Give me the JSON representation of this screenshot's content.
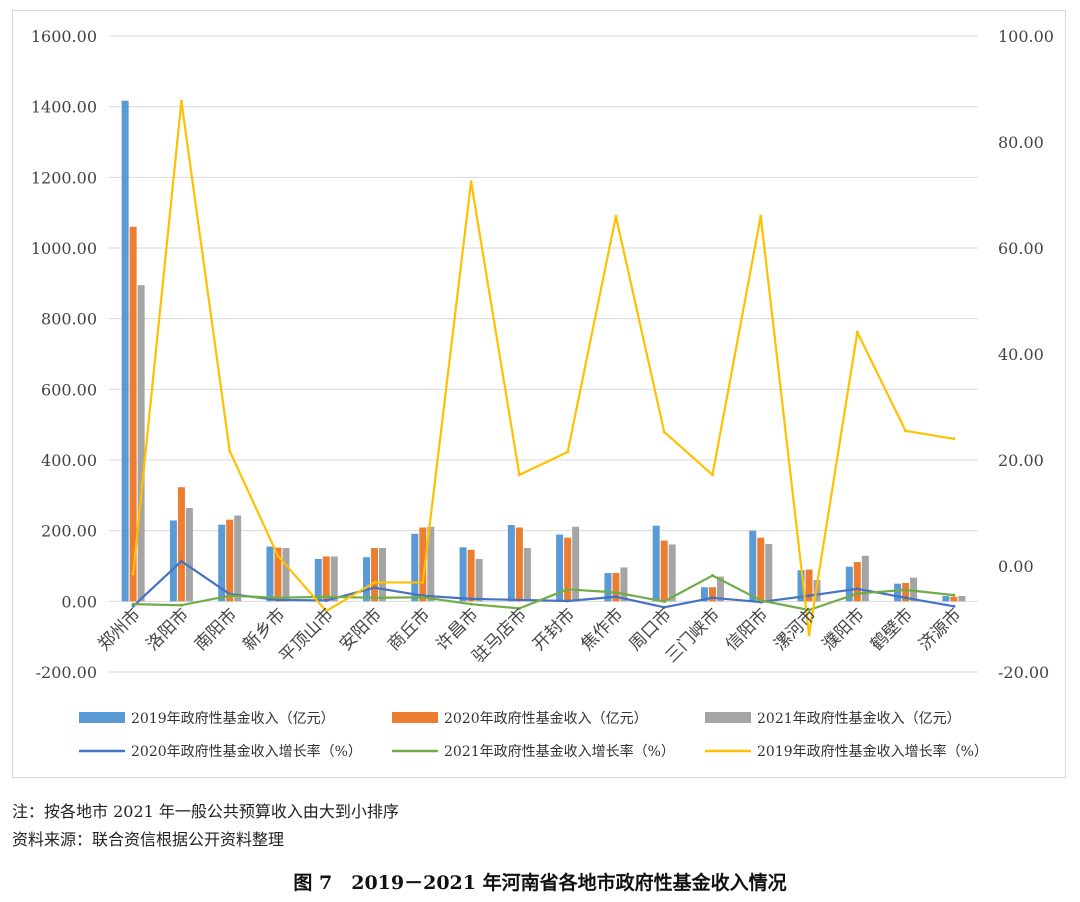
{
  "notes": {
    "note": "注：按各地市 2021 年一般公共预算收入由大到小排序",
    "source": "资料来源：联合资信根据公开资料整理"
  },
  "caption": "图 7　2019－2021 年河南省各地市政府性基金收入情况",
  "chart_data": {
    "type": "bar",
    "title": "",
    "xlabel": "",
    "ylabel": "",
    "ylim": [
      -200,
      1600
    ],
    "y2lim": [
      -20,
      100
    ],
    "yticks": [
      "1600.00",
      "1400.00",
      "1200.00",
      "1000.00",
      "800.00",
      "600.00",
      "400.00",
      "200.00",
      "0.00",
      "-200.00"
    ],
    "y2ticks": [
      "100.00",
      "80.00",
      "60.00",
      "40.00",
      "20.00",
      "0.00",
      "-20.00"
    ],
    "grid": "horizontal",
    "legend_position": "bottom",
    "categories": [
      "郑州市",
      "洛阳市",
      "南阳市",
      "新乡市",
      "平顶山市",
      "安阳市",
      "商丘市",
      "许昌市",
      "驻马店市",
      "开封市",
      "焦作市",
      "周口市",
      "三门峡市",
      "信阳市",
      "漯河市",
      "濮阳市",
      "鹤壁市",
      "济源市"
    ],
    "series": [
      {
        "name": "2019年政府性基金收入（亿元）",
        "kind": "bar",
        "axis": "left",
        "color": "#5b9bd5",
        "values": [
          1417,
          229,
          217,
          155,
          120,
          125,
          191,
          153,
          216,
          189,
          80,
          214,
          40,
          200,
          88,
          98,
          50,
          15
        ]
      },
      {
        "name": "2020年政府性基金收入（亿元）",
        "kind": "bar",
        "axis": "left",
        "color": "#ed7d31",
        "values": [
          1060,
          323,
          231,
          152,
          127,
          151,
          209,
          146,
          209,
          180,
          80,
          172,
          40,
          180,
          90,
          111,
          52,
          13
        ]
      },
      {
        "name": "2021年政府性基金收入（亿元）",
        "kind": "bar",
        "axis": "left",
        "color": "#a5a5a5",
        "values": [
          895,
          264,
          243,
          151,
          127,
          151,
          211,
          120,
          151,
          211,
          96,
          161,
          70,
          162,
          60,
          129,
          67,
          15
        ]
      },
      {
        "name": "2020年政府性基金收入增长率（%）",
        "kind": "line",
        "axis": "right",
        "color": "#4472c4",
        "values": [
          -7.6,
          0.9,
          -5.3,
          -6.4,
          -6.5,
          -4.1,
          -5.6,
          -6.2,
          -6.4,
          -6.6,
          -5.8,
          -7.8,
          -6.0,
          -6.8,
          -5.6,
          -4.3,
          -6.0,
          -7.6
        ]
      },
      {
        "name": "2021年政府性基金收入增长率（%）",
        "kind": "line",
        "axis": "right",
        "color": "#70ad47",
        "values": [
          -7.2,
          -7.4,
          -5.6,
          -6.0,
          -5.8,
          -6.0,
          -5.9,
          -7.2,
          -8.0,
          -4.4,
          -5.0,
          -6.7,
          -1.8,
          -6.5,
          -8.3,
          -5.2,
          -4.5,
          -5.5
        ]
      },
      {
        "name": "2019年政府性基金收入增长率（%）",
        "kind": "line",
        "axis": "right",
        "color": "#ffc000",
        "values": [
          -1.5,
          87.7,
          21.7,
          1.9,
          -8.5,
          -3.1,
          -3.1,
          72.5,
          17.2,
          21.5,
          66.0,
          25.3,
          17.2,
          66.0,
          -13.0,
          44.1,
          25.5,
          24.0
        ]
      }
    ]
  }
}
